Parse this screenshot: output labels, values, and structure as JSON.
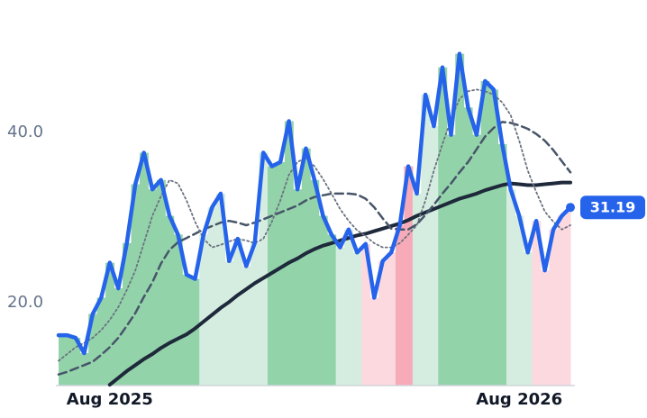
{
  "chart_data": {
    "type": "line",
    "categories": [
      null,
      null,
      null,
      null,
      null,
      null,
      "Aug 2025",
      null,
      null,
      null,
      null,
      null,
      null,
      null,
      null,
      null,
      null,
      null,
      null,
      null,
      null,
      null,
      null,
      null,
      null,
      null,
      null,
      null,
      null,
      null,
      null,
      null,
      null,
      null,
      null,
      null,
      null,
      null,
      null,
      null,
      null,
      null,
      null,
      null,
      null,
      null,
      null,
      null,
      null,
      null,
      null,
      null,
      null,
      null,
      "Aug 2026",
      null,
      null,
      null,
      null,
      null,
      null
    ],
    "series": [
      {
        "color": "#2563eb",
        "values": [
          16.2,
          16.2,
          15.9,
          14.1,
          18.7,
          20.6,
          24.7,
          21.7,
          27.0,
          33.9,
          37.6,
          33.3,
          34.4,
          30.2,
          28.0,
          23.3,
          22.8,
          28.0,
          31.2,
          32.8,
          24.9,
          27.5,
          24.3,
          27.0,
          37.6,
          36.0,
          36.5,
          41.3,
          33.3,
          38.1,
          34.4,
          30.2,
          28.0,
          26.5,
          28.6,
          25.9,
          26.9,
          20.6,
          24.9,
          25.9,
          29.1,
          36.0,
          32.8,
          44.4,
          40.7,
          47.6,
          39.7,
          49.2,
          42.9,
          39.7,
          46.0,
          45.0,
          38.6,
          33.3,
          30.2,
          25.9,
          29.6,
          23.8,
          28.6,
          30.2,
          31.19
        ]
      },
      {
        "color": "#6b7280",
        "style": "dotted",
        "values": [
          13.2,
          14.0,
          14.8,
          15.3,
          15.9,
          16.8,
          18.0,
          19.5,
          21.5,
          23.8,
          27.0,
          30.2,
          32.5,
          34.4,
          34.0,
          32.0,
          29.5,
          27.5,
          26.5,
          26.8,
          27.2,
          27.5,
          27.3,
          27.0,
          27.5,
          29.5,
          32.0,
          35.0,
          36.5,
          37.0,
          36.0,
          34.5,
          32.8,
          31.0,
          29.6,
          28.5,
          27.8,
          27.0,
          26.5,
          26.5,
          27.0,
          28.0,
          29.1,
          32.0,
          35.5,
          38.6,
          41.5,
          43.9,
          44.8,
          45.0,
          44.8,
          44.4,
          43.5,
          42.0,
          39.0,
          35.5,
          33.0,
          30.7,
          29.5,
          28.6,
          29.1
        ]
      },
      {
        "color": "#475569",
        "style": "dashed",
        "values": [
          11.6,
          11.9,
          12.3,
          12.7,
          13.1,
          13.9,
          14.8,
          15.9,
          17.3,
          18.8,
          20.7,
          22.4,
          24.6,
          26.2,
          27.1,
          27.6,
          28.1,
          28.6,
          29.0,
          29.4,
          29.6,
          29.4,
          29.1,
          29.4,
          29.8,
          30.2,
          30.6,
          31.0,
          31.4,
          32.0,
          32.4,
          32.6,
          32.8,
          32.8,
          32.8,
          32.7,
          32.2,
          31.2,
          29.9,
          28.7,
          28.6,
          28.6,
          29.2,
          30.3,
          31.5,
          32.8,
          34.0,
          35.3,
          36.5,
          38.0,
          39.5,
          40.5,
          41.2,
          41.1,
          40.8,
          40.4,
          39.8,
          39.0,
          37.9,
          36.6,
          35.3
        ]
      },
      {
        "color": "#1e293b",
        "style": "solid",
        "values": [
          null,
          null,
          null,
          null,
          null,
          null,
          10.4,
          11.2,
          12.0,
          12.7,
          13.4,
          14.0,
          14.7,
          15.3,
          15.8,
          16.3,
          17.0,
          17.8,
          18.6,
          19.4,
          20.1,
          20.9,
          21.6,
          22.3,
          22.9,
          23.5,
          24.1,
          24.7,
          25.2,
          25.8,
          26.3,
          26.7,
          27.0,
          27.3,
          27.6,
          27.9,
          28.1,
          28.4,
          28.7,
          29.0,
          29.3,
          29.7,
          30.2,
          30.6,
          31.0,
          31.4,
          31.8,
          32.2,
          32.5,
          32.8,
          33.2,
          33.5,
          33.8,
          34.0,
          33.9,
          33.8,
          33.8,
          33.9,
          34.0,
          34.1,
          34.1
        ]
      }
    ],
    "area_colors": [
      "#93d3aa",
      "#93d3aa",
      "#93d3aa",
      "#93d3aa",
      "#93d3aa",
      "#93d3aa",
      "#93d3aa",
      "#93d3aa",
      "#93d3aa",
      "#93d3aa",
      "#93d3aa",
      "#93d3aa",
      "#93d3aa",
      "#93d3aa",
      "#93d3aa",
      "#93d3aa",
      "#93d3aa",
      "#d5ede0",
      "#d5ede0",
      "#d5ede0",
      "#d5ede0",
      "#d5ede0",
      "#d5ede0",
      "#d5ede0",
      "#d5ede0",
      "#93d3aa",
      "#93d3aa",
      "#93d3aa",
      "#93d3aa",
      "#93d3aa",
      "#93d3aa",
      "#93d3aa",
      "#93d3aa",
      "#d5ede0",
      "#d5ede0",
      "#d5ede0",
      "#fcd9df",
      "#fcd9df",
      "#fcd9df",
      "#fcd9df",
      "#f7aab8",
      "#f7aab8",
      "#d5ede0",
      "#d5ede0",
      "#d5ede0",
      "#93d3aa",
      "#93d3aa",
      "#93d3aa",
      "#93d3aa",
      "#93d3aa",
      "#93d3aa",
      "#93d3aa",
      "#93d3aa",
      "#d5ede0",
      "#d5ede0",
      "#d5ede0",
      "#fcd9df",
      "#fcd9df",
      "#fcd9df",
      "#fcd9df",
      "#fcd9df"
    ],
    "ylim": [
      10.3,
      55.5
    ],
    "yticks": [
      {
        "value": 20,
        "label": "20.0"
      },
      {
        "value": 40,
        "label": "40.0"
      }
    ],
    "grid": false
  }
}
